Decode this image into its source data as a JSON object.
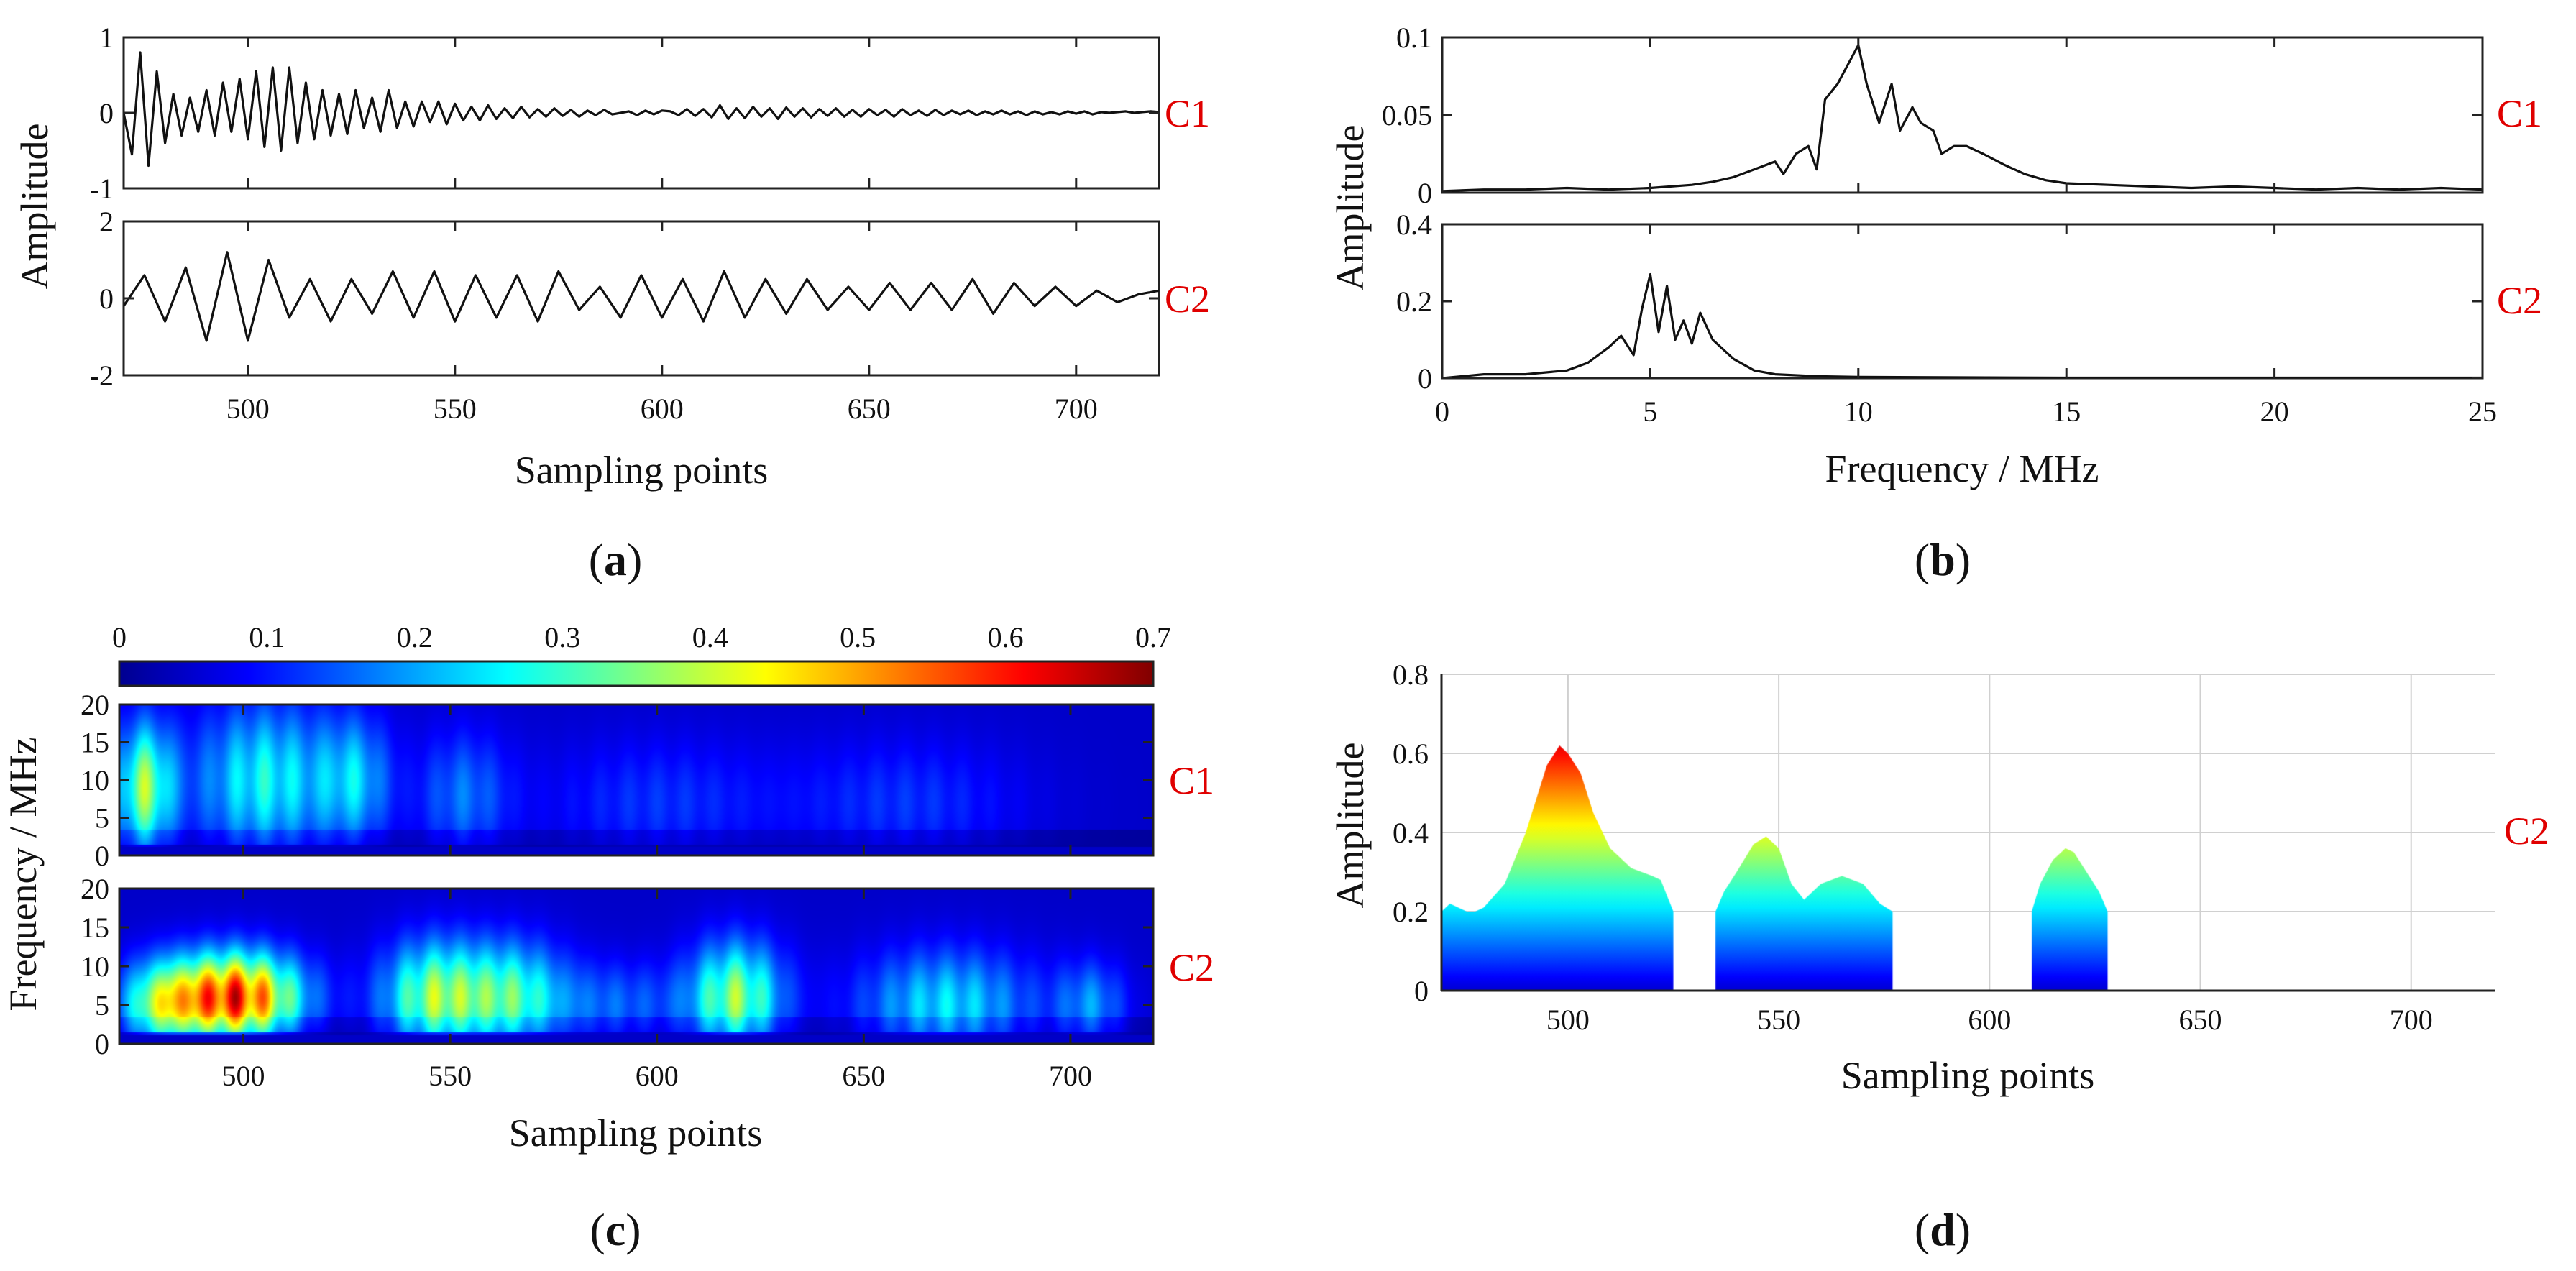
{
  "chart_data": [
    {
      "panel": "a",
      "type": "line",
      "title": "",
      "xlabel": "Sampling points",
      "ylabel": "Amplitude",
      "xlim": [
        470,
        720
      ],
      "xticks": [
        500,
        550,
        600,
        650,
        700
      ],
      "subplots": [
        {
          "name": "C1",
          "ylim": [
            -1,
            1
          ],
          "yticks": [
            -1,
            0,
            1
          ],
          "x": [
            470,
            472,
            474,
            476,
            478,
            480,
            482,
            484,
            486,
            488,
            490,
            492,
            494,
            496,
            498,
            500,
            502,
            504,
            506,
            508,
            510,
            512,
            514,
            516,
            518,
            520,
            522,
            524,
            526,
            528,
            530,
            532,
            534,
            536,
            538,
            540,
            542,
            544,
            546,
            548,
            550,
            552,
            554,
            556,
            558,
            560,
            562,
            564,
            566,
            568,
            570,
            572,
            574,
            576,
            578,
            580,
            582,
            584,
            586,
            588,
            590,
            592,
            594,
            596,
            598,
            600,
            602,
            604,
            606,
            608,
            610,
            612,
            614,
            616,
            618,
            620,
            622,
            624,
            626,
            628,
            630,
            632,
            634,
            636,
            638,
            640,
            642,
            644,
            646,
            648,
            650,
            652,
            654,
            656,
            658,
            660,
            662,
            664,
            666,
            668,
            670,
            672,
            674,
            676,
            678,
            680,
            682,
            684,
            686,
            688,
            690,
            692,
            694,
            696,
            698,
            700,
            702,
            704,
            706,
            708,
            710,
            712,
            714,
            716,
            718,
            720
          ],
          "y": [
            0.0,
            -0.55,
            0.8,
            -0.7,
            0.55,
            -0.4,
            0.25,
            -0.3,
            0.2,
            -0.25,
            0.3,
            -0.3,
            0.4,
            -0.25,
            0.45,
            -0.35,
            0.55,
            -0.45,
            0.6,
            -0.5,
            0.6,
            -0.4,
            0.4,
            -0.35,
            0.3,
            -0.3,
            0.25,
            -0.28,
            0.3,
            -0.2,
            0.2,
            -0.25,
            0.3,
            -0.2,
            0.15,
            -0.18,
            0.15,
            -0.12,
            0.15,
            -0.15,
            0.12,
            -0.1,
            0.08,
            -0.1,
            0.1,
            -0.08,
            0.06,
            -0.07,
            0.08,
            -0.06,
            0.05,
            -0.05,
            0.06,
            -0.04,
            0.04,
            -0.05,
            0.03,
            -0.03,
            0.04,
            -0.02,
            0.0,
            0.02,
            -0.03,
            0.03,
            -0.02,
            0.03,
            0.02,
            -0.03,
            0.05,
            -0.04,
            0.05,
            -0.06,
            0.1,
            -0.08,
            0.06,
            -0.07,
            0.08,
            -0.05,
            0.06,
            -0.08,
            0.07,
            -0.05,
            0.06,
            -0.06,
            0.05,
            -0.04,
            0.06,
            -0.05,
            0.04,
            -0.05,
            0.05,
            -0.03,
            0.04,
            -0.05,
            0.05,
            -0.03,
            0.03,
            -0.04,
            0.04,
            -0.03,
            0.03,
            -0.02,
            0.03,
            -0.03,
            0.02,
            -0.02,
            0.03,
            -0.02,
            0.02,
            -0.03,
            0.02,
            -0.02,
            0.01,
            -0.02,
            0.02,
            -0.01,
            0.02,
            -0.02,
            0.01,
            0.0,
            0.01,
            0.02,
            0.0,
            0.01,
            0.02,
            0.01
          ]
        },
        {
          "name": "C2",
          "ylim": [
            -2,
            2
          ],
          "yticks": [
            -2,
            0,
            2
          ],
          "x": [
            470,
            475,
            480,
            485,
            490,
            495,
            500,
            505,
            510,
            515,
            520,
            525,
            530,
            535,
            540,
            545,
            550,
            555,
            560,
            565,
            570,
            575,
            580,
            585,
            590,
            595,
            600,
            605,
            610,
            615,
            620,
            625,
            630,
            635,
            640,
            645,
            650,
            655,
            660,
            665,
            670,
            675,
            680,
            685,
            690,
            695,
            700,
            705,
            710,
            715,
            720
          ],
          "y": [
            -0.2,
            0.6,
            -0.6,
            0.8,
            -1.1,
            1.2,
            -1.1,
            1.0,
            -0.5,
            0.5,
            -0.6,
            0.5,
            -0.4,
            0.7,
            -0.5,
            0.7,
            -0.6,
            0.6,
            -0.5,
            0.6,
            -0.6,
            0.7,
            -0.3,
            0.3,
            -0.5,
            0.6,
            -0.5,
            0.5,
            -0.6,
            0.7,
            -0.5,
            0.5,
            -0.4,
            0.5,
            -0.3,
            0.3,
            -0.3,
            0.4,
            -0.3,
            0.4,
            -0.3,
            0.5,
            -0.4,
            0.4,
            -0.2,
            0.3,
            -0.2,
            0.2,
            -0.1,
            0.1,
            0.2
          ]
        }
      ]
    },
    {
      "panel": "b",
      "type": "line",
      "title": "",
      "xlabel": "Frequency / MHz",
      "ylabel": "Amplitude",
      "xlim": [
        0,
        25
      ],
      "xticks": [
        0,
        5,
        10,
        15,
        20,
        25
      ],
      "subplots": [
        {
          "name": "C1",
          "ylim": [
            0,
            0.1
          ],
          "yticks": [
            0,
            0.05,
            0.1
          ],
          "x": [
            0,
            1,
            2,
            3,
            4,
            5,
            6,
            6.5,
            7,
            7.5,
            8,
            8.2,
            8.5,
            8.8,
            9,
            9.2,
            9.5,
            9.7,
            10,
            10.2,
            10.5,
            10.8,
            11,
            11.3,
            11.5,
            11.8,
            12,
            12.3,
            12.6,
            13,
            13.5,
            14,
            14.5,
            15,
            16,
            17,
            18,
            19,
            20,
            21,
            22,
            23,
            24,
            25
          ],
          "y": [
            0.001,
            0.002,
            0.002,
            0.003,
            0.002,
            0.003,
            0.005,
            0.007,
            0.01,
            0.015,
            0.02,
            0.012,
            0.025,
            0.03,
            0.015,
            0.06,
            0.07,
            0.08,
            0.095,
            0.07,
            0.045,
            0.07,
            0.04,
            0.055,
            0.045,
            0.04,
            0.025,
            0.03,
            0.03,
            0.025,
            0.018,
            0.012,
            0.008,
            0.006,
            0.005,
            0.004,
            0.003,
            0.004,
            0.003,
            0.002,
            0.003,
            0.002,
            0.003,
            0.002
          ]
        },
        {
          "name": "C2",
          "ylim": [
            0,
            0.4
          ],
          "yticks": [
            0,
            0.2,
            0.4
          ],
          "x": [
            0,
            1,
            2,
            3,
            3.5,
            4,
            4.3,
            4.6,
            4.8,
            5,
            5.2,
            5.4,
            5.6,
            5.8,
            6,
            6.2,
            6.5,
            7,
            7.5,
            8,
            9,
            10,
            12,
            15,
            20,
            25
          ],
          "y": [
            0.0,
            0.01,
            0.01,
            0.02,
            0.04,
            0.08,
            0.11,
            0.06,
            0.18,
            0.27,
            0.12,
            0.24,
            0.1,
            0.15,
            0.09,
            0.17,
            0.1,
            0.05,
            0.02,
            0.01,
            0.005,
            0.003,
            0.002,
            0.001,
            0.001,
            0.001
          ]
        }
      ]
    },
    {
      "panel": "c",
      "type": "heatmap",
      "title": "",
      "xlabel": "Sampling points",
      "ylabel": "Frequency / MHz",
      "xlim": [
        470,
        720
      ],
      "xticks": [
        500,
        550,
        600,
        650,
        700
      ],
      "ylim": [
        0,
        20
      ],
      "yticks": [
        0,
        5,
        10,
        15,
        20
      ],
      "colorbar": {
        "min": 0,
        "max": 0.7,
        "ticks": [
          0,
          0.1,
          0.2,
          0.3,
          0.4,
          0.5,
          0.6,
          0.7
        ],
        "colormap": "jet"
      },
      "subplots": [
        {
          "name": "C1",
          "blobs": [
            {
              "x": 476,
              "f": 9,
              "amp": 0.35,
              "sx": 5,
              "sf": 6
            },
            {
              "x": 505,
              "f": 10,
              "amp": 0.25,
              "sx": 12,
              "sf": 7
            },
            {
              "x": 527,
              "f": 10,
              "amp": 0.18,
              "sx": 6,
              "sf": 6
            },
            {
              "x": 553,
              "f": 8,
              "amp": 0.13,
              "sx": 8,
              "sf": 6
            },
            {
              "x": 600,
              "f": 7,
              "amp": 0.08,
              "sx": 20,
              "sf": 6
            },
            {
              "x": 660,
              "f": 7,
              "amp": 0.08,
              "sx": 20,
              "sf": 6
            }
          ]
        },
        {
          "name": "C2",
          "blobs": [
            {
              "x": 498,
              "f": 6,
              "amp": 0.62,
              "sx": 11,
              "sf": 4
            },
            {
              "x": 480,
              "f": 5,
              "amp": 0.3,
              "sx": 7,
              "sf": 4
            },
            {
              "x": 546,
              "f": 6,
              "amp": 0.35,
              "sx": 9,
              "sf": 5
            },
            {
              "x": 565,
              "f": 6,
              "amp": 0.28,
              "sx": 9,
              "sf": 5
            },
            {
              "x": 619,
              "f": 6,
              "amp": 0.35,
              "sx": 8,
              "sf": 5
            },
            {
              "x": 670,
              "f": 5,
              "amp": 0.22,
              "sx": 15,
              "sf": 5
            },
            {
              "x": 705,
              "f": 5,
              "amp": 0.15,
              "sx": 6,
              "sf": 4
            },
            {
              "x": 590,
              "f": 5,
              "amp": 0.12,
              "sx": 12,
              "sf": 4
            }
          ]
        }
      ]
    },
    {
      "panel": "d",
      "type": "area",
      "title": "",
      "xlabel": "Sampling points",
      "ylabel": "Amplitude",
      "xlim": [
        470,
        720
      ],
      "xticks": [
        500,
        550,
        600,
        650,
        700
      ],
      "ylim": [
        0,
        0.8
      ],
      "yticks": [
        0,
        0.2,
        0.4,
        0.6,
        0.8
      ],
      "grid": true,
      "series_name": "C2",
      "segments": [
        {
          "x": [
            470,
            472,
            474,
            476,
            478,
            480,
            485,
            490,
            495,
            498,
            500,
            503,
            506,
            510,
            515,
            520,
            522,
            525
          ],
          "y": [
            0.2,
            0.22,
            0.21,
            0.2,
            0.2,
            0.21,
            0.27,
            0.4,
            0.57,
            0.62,
            0.6,
            0.55,
            0.45,
            0.36,
            0.31,
            0.29,
            0.28,
            0.2
          ]
        },
        {
          "x": [
            535,
            537,
            540,
            544,
            547,
            550,
            553,
            556,
            560,
            565,
            570,
            574,
            577
          ],
          "y": [
            0.2,
            0.25,
            0.3,
            0.37,
            0.39,
            0.36,
            0.27,
            0.23,
            0.27,
            0.29,
            0.27,
            0.22,
            0.2
          ]
        },
        {
          "x": [
            610,
            612,
            615,
            618,
            620,
            623,
            626,
            628
          ],
          "y": [
            0.2,
            0.27,
            0.33,
            0.36,
            0.35,
            0.3,
            0.25,
            0.2
          ]
        }
      ]
    }
  ],
  "panel_labels": {
    "a": "a",
    "b": "b",
    "c": "c",
    "d": "d"
  },
  "channel_labels": {
    "c1": "C1",
    "c2": "C2"
  },
  "axis_labels": {
    "sampling_points": "Sampling points",
    "frequency_mhz": "Frequency / MHz",
    "amplitude": "Amplitude"
  },
  "colors": {
    "channel_label": "#e00000",
    "line": "#111111"
  }
}
